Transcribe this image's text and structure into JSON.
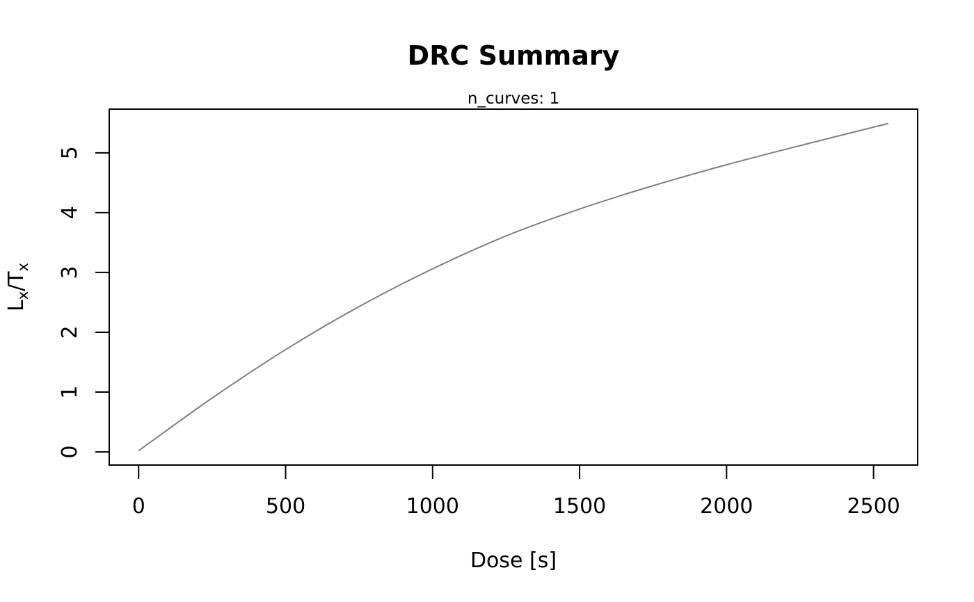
{
  "chart_data": {
    "type": "line",
    "title": "DRC Summary",
    "subtitle": "n_curves: 1",
    "xlabel": "Dose [s]",
    "ylabel": {
      "main_1": "L",
      "sub_1": "x",
      "main_2": "/T",
      "sub_2": "x"
    },
    "xlim": [
      -100,
      2650
    ],
    "ylim": [
      -0.22,
      5.73
    ],
    "xticks": [
      0,
      500,
      1000,
      1500,
      2000,
      2500
    ],
    "yticks": [
      0,
      1,
      2,
      3,
      4,
      5
    ],
    "grid": false,
    "series": [
      {
        "color": "#808080",
        "x": [
          0,
          250,
          500,
          750,
          1000,
          1250,
          1500,
          1750,
          2000,
          2250,
          2550
        ],
        "y": [
          0.02,
          0.9,
          1.71,
          2.43,
          3.06,
          3.61,
          4.06,
          4.45,
          4.8,
          5.12,
          5.49
        ]
      }
    ]
  }
}
